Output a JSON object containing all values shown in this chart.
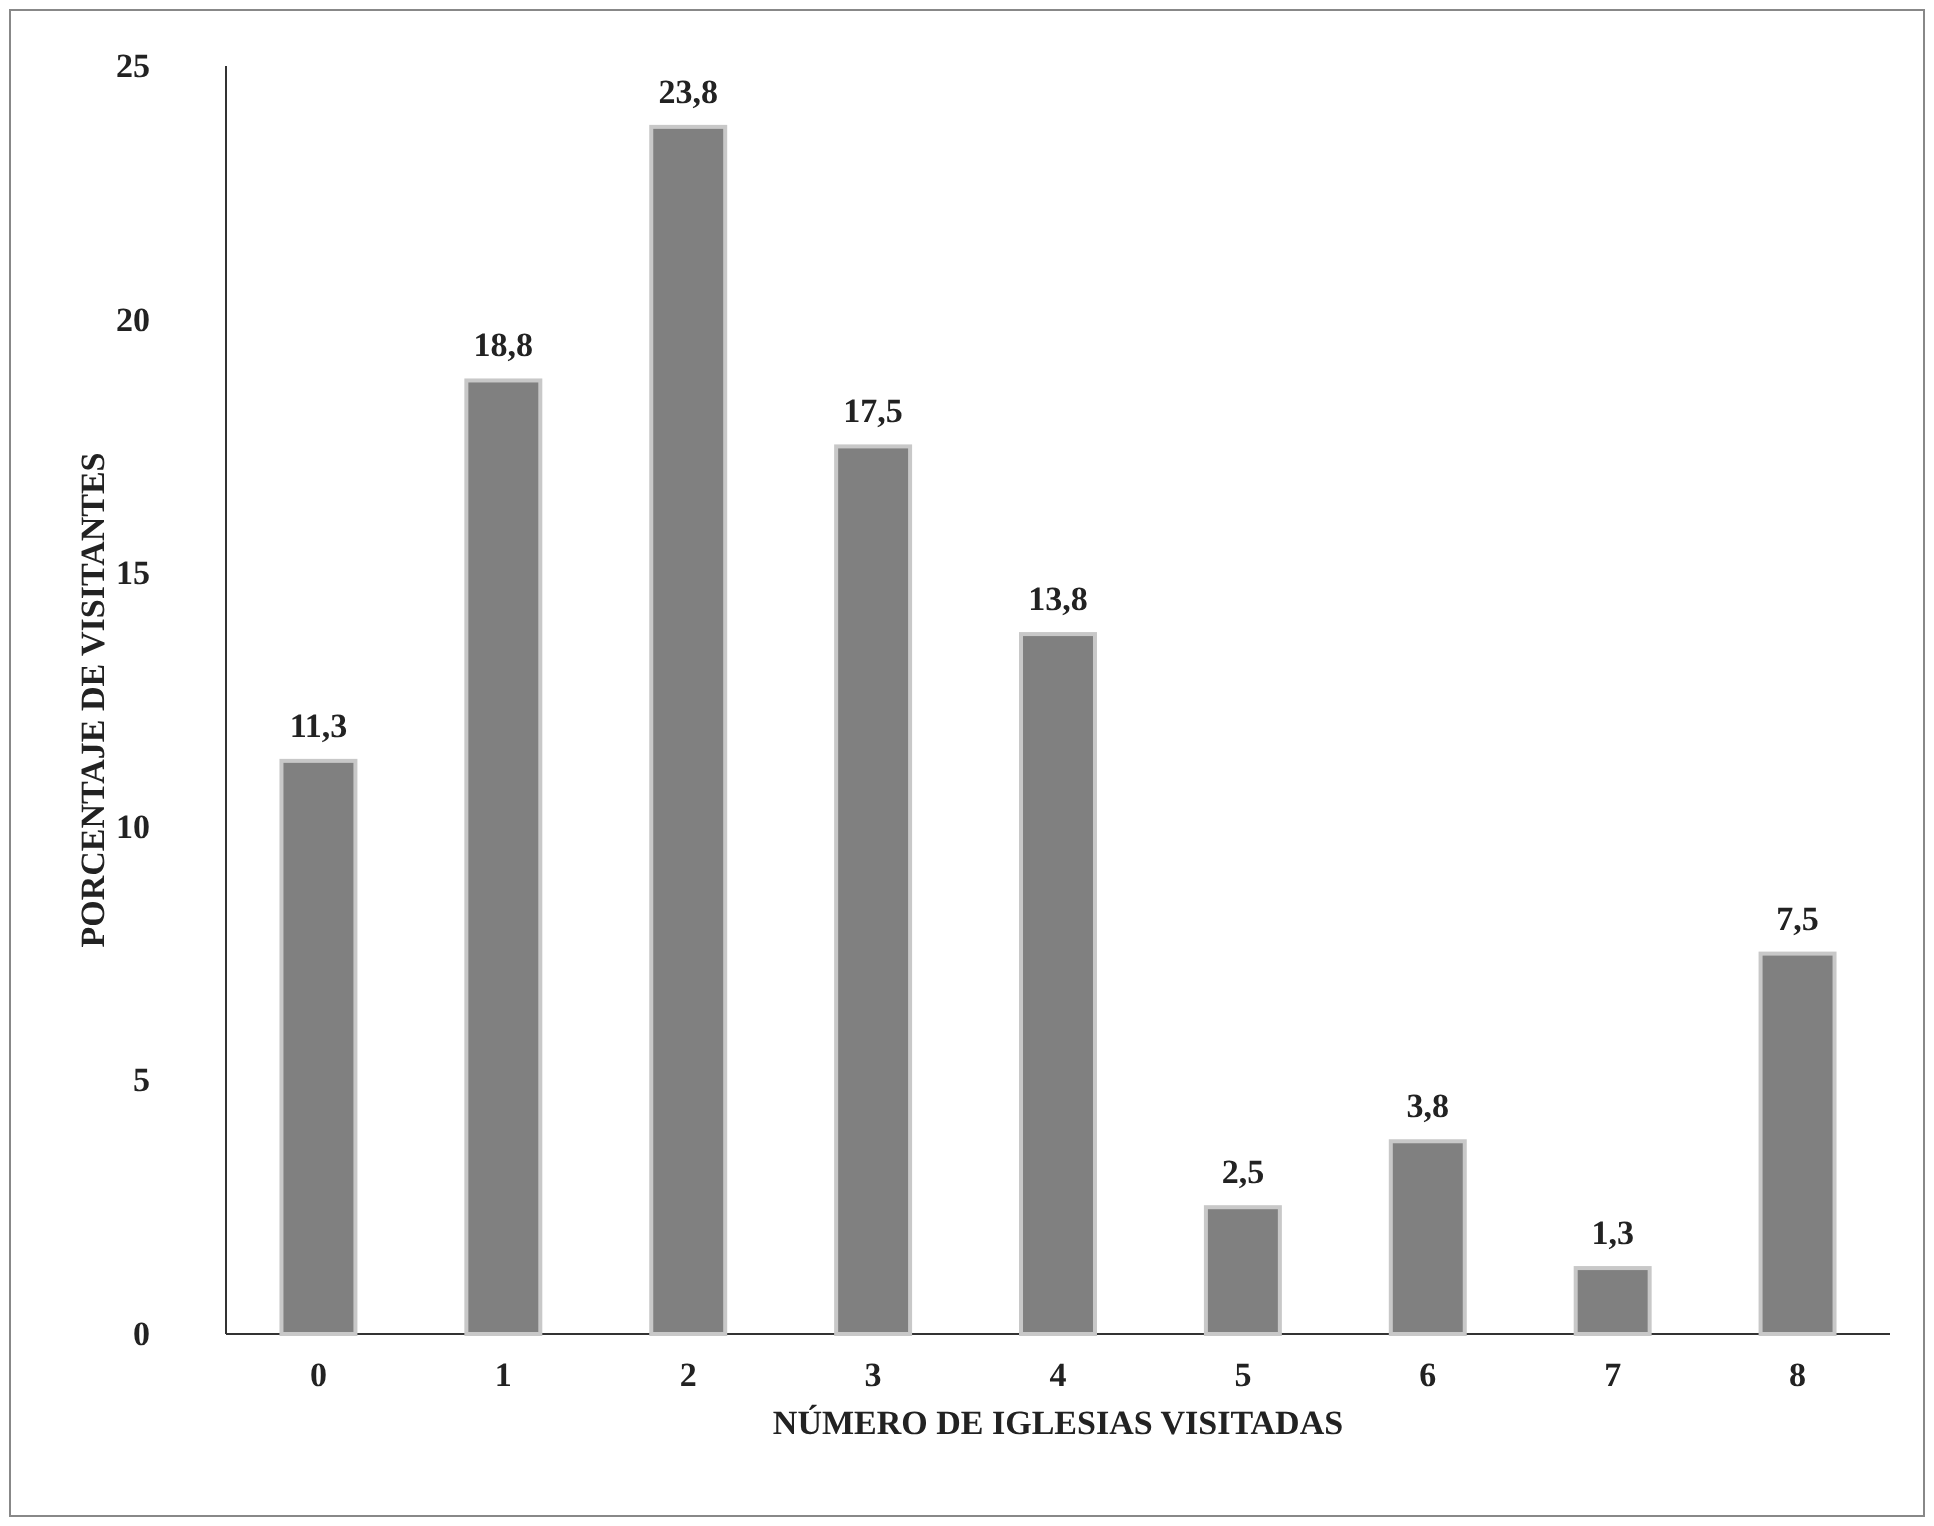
{
  "chart_data": {
    "type": "bar",
    "xlabel": "NÚMERO DE IGLESIAS VISITADAS",
    "ylabel": "PORCENTAJE DE VISITANTES",
    "categories": [
      "0",
      "1",
      "2",
      "3",
      "4",
      "5",
      "6",
      "7",
      "8"
    ],
    "values": [
      11.3,
      18.8,
      23.8,
      17.5,
      13.8,
      2.5,
      3.8,
      1.3,
      7.5
    ],
    "color": "#808080",
    "ylim": [
      0,
      25
    ],
    "yticks": [
      0,
      5,
      10,
      15,
      20,
      25
    ],
    "value_labels": [
      "11,3",
      "18,8",
      "23,8",
      "17,5",
      "13,8",
      "2,5",
      "3,8",
      "1,3",
      "7,5"
    ],
    "grid": false
  }
}
